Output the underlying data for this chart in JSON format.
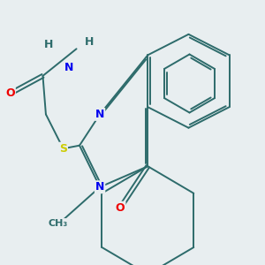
{
  "bg_color": "#e8eef0",
  "atom_colors": {
    "C": "#2d6b6b",
    "N": "#0000ee",
    "O": "#ee0000",
    "S": "#cccc00",
    "H": "#2d6b6b"
  },
  "bond_color": "#2d6b6b",
  "bond_width": 1.4,
  "font_size": 9,
  "title": ""
}
